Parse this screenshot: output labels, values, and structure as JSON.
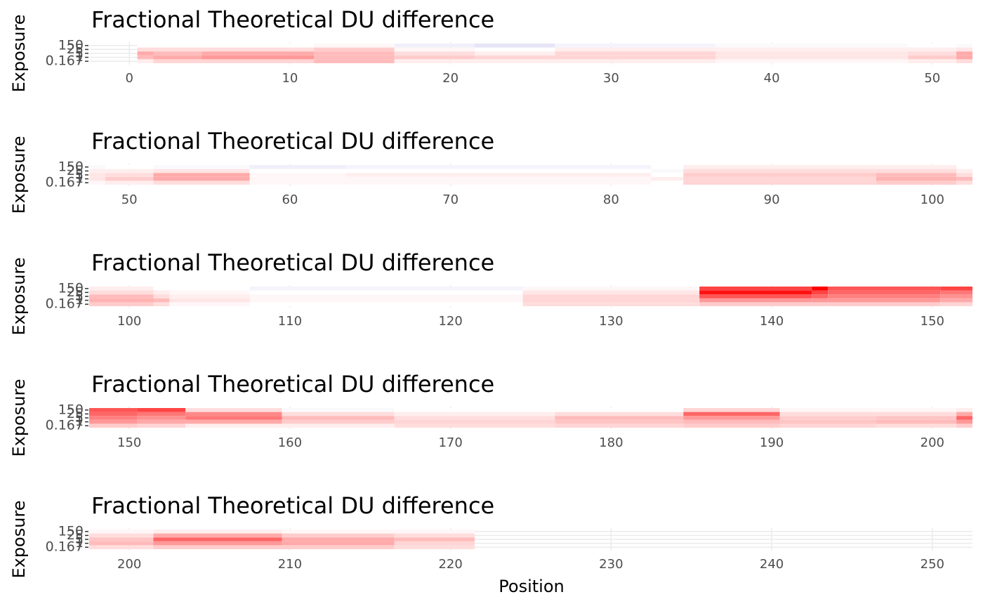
{
  "chart_data": {
    "type": "heatmap",
    "title": "Fractional Theoretical DU difference",
    "x_label": "Position",
    "y_label": "Exposure",
    "exposures": [
      "0.167",
      "1",
      "5",
      "25",
      "150"
    ],
    "colors": {
      "positive": "#ff0000",
      "negative": "#6a5acd",
      "zero": "#ffffff"
    },
    "grid": true,
    "panels": [
      {
        "xlim": [
          -2.5,
          52.5
        ],
        "xticks": [
          0,
          10,
          20,
          30,
          40,
          50
        ]
      },
      {
        "xlim": [
          47.5,
          102.5
        ],
        "xticks": [
          50,
          60,
          70,
          80,
          90,
          100
        ]
      },
      {
        "xlim": [
          97.5,
          152.5
        ],
        "xticks": [
          100,
          110,
          120,
          130,
          140,
          150
        ]
      },
      {
        "xlim": [
          147.5,
          202.5
        ],
        "xticks": [
          150,
          160,
          170,
          180,
          190,
          200
        ]
      },
      {
        "xlim": [
          197.5,
          252.5
        ],
        "xticks": [
          200,
          210,
          220,
          230,
          240,
          250
        ]
      }
    ],
    "segments": [
      {
        "start": 1,
        "end": 1,
        "values": [
          0.02,
          0.08,
          0.1,
          0.04,
          0
        ]
      },
      {
        "start": 2,
        "end": 4,
        "values": [
          0.05,
          0.1,
          0.08,
          0.04,
          0
        ]
      },
      {
        "start": 5,
        "end": 11,
        "values": [
          0.05,
          0.12,
          0.1,
          0.04,
          0
        ]
      },
      {
        "start": 12,
        "end": 16,
        "values": [
          0.08,
          0.08,
          0.08,
          0.06,
          0.01
        ]
      },
      {
        "start": 17,
        "end": 21,
        "values": [
          0.02,
          0.06,
          0.04,
          0.01,
          -0.03
        ]
      },
      {
        "start": 22,
        "end": 26,
        "values": [
          0.02,
          0.05,
          0.02,
          0,
          -0.05
        ]
      },
      {
        "start": 27,
        "end": 36,
        "values": [
          0.02,
          0.05,
          0.05,
          0.02,
          -0.02
        ]
      },
      {
        "start": 37,
        "end": 48,
        "values": [
          0.01,
          0.03,
          0.03,
          0.02,
          -0.01
        ]
      },
      {
        "start": 49,
        "end": 51,
        "values": [
          0.02,
          0.06,
          0.04,
          0.02,
          0
        ]
      },
      {
        "start": 52,
        "end": 57,
        "values": [
          0.04,
          0.1,
          0.1,
          0.03,
          -0.01
        ]
      },
      {
        "start": 58,
        "end": 63,
        "values": [
          0.01,
          0.01,
          0.01,
          0,
          -0.03
        ]
      },
      {
        "start": 64,
        "end": 82,
        "values": [
          0.01,
          0.01,
          0.02,
          0,
          -0.02
        ]
      },
      {
        "start": 83,
        "end": 84,
        "values": [
          0,
          0.02,
          0,
          -0.01,
          0
        ]
      },
      {
        "start": 85,
        "end": 96,
        "values": [
          0.05,
          0.05,
          0.06,
          0.04,
          0.02
        ]
      },
      {
        "start": 97,
        "end": 101,
        "values": [
          0.06,
          0.09,
          0.08,
          0.04,
          0.02
        ]
      },
      {
        "start": 102,
        "end": 102,
        "values": [
          0.04,
          0.08,
          0.04,
          0.02,
          0
        ]
      },
      {
        "start": 103,
        "end": 107,
        "values": [
          0.01,
          0.03,
          0.02,
          0.01,
          0
        ]
      },
      {
        "start": 108,
        "end": 124,
        "values": [
          0,
          0.01,
          0.01,
          0,
          -0.02
        ]
      },
      {
        "start": 125,
        "end": 135,
        "values": [
          0.04,
          0.05,
          0.05,
          0.03,
          0.01
        ]
      },
      {
        "start": 136,
        "end": 142,
        "values": [
          0.06,
          0.12,
          0.2,
          0.28,
          0.22
        ]
      },
      {
        "start": 143,
        "end": 143,
        "values": [
          0.06,
          0.12,
          0.18,
          0.22,
          0.3
        ]
      },
      {
        "start": 144,
        "end": 150,
        "values": [
          0.06,
          0.12,
          0.15,
          0.18,
          0.2
        ]
      },
      {
        "start": 151,
        "end": 153,
        "values": [
          0.05,
          0.1,
          0.13,
          0.16,
          0.22
        ]
      },
      {
        "start": 154,
        "end": 159,
        "values": [
          0.02,
          0.1,
          0.16,
          0.14,
          0.04
        ]
      },
      {
        "start": 160,
        "end": 166,
        "values": [
          0.02,
          0.06,
          0.08,
          0.04,
          -0.01
        ]
      },
      {
        "start": 167,
        "end": 176,
        "values": [
          0.04,
          0.05,
          0.04,
          0.02,
          0
        ]
      },
      {
        "start": 177,
        "end": 184,
        "values": [
          0.05,
          0.07,
          0.08,
          0.04,
          0
        ]
      },
      {
        "start": 185,
        "end": 190,
        "values": [
          0.06,
          0.08,
          0.12,
          0.18,
          0.05
        ]
      },
      {
        "start": 191,
        "end": 196,
        "values": [
          0.05,
          0.07,
          0.06,
          0.04,
          0.01
        ]
      },
      {
        "start": 197,
        "end": 201,
        "values": [
          0.04,
          0.08,
          0.07,
          0.04,
          0.01
        ]
      },
      {
        "start": 202,
        "end": 209,
        "values": [
          0.06,
          0.12,
          0.18,
          0.1,
          0.02
        ]
      },
      {
        "start": 210,
        "end": 216,
        "values": [
          0.06,
          0.1,
          0.1,
          0.06,
          0.01
        ]
      },
      {
        "start": 217,
        "end": 221,
        "values": [
          0.04,
          0.05,
          0.08,
          0.04,
          0.01
        ]
      }
    ]
  }
}
